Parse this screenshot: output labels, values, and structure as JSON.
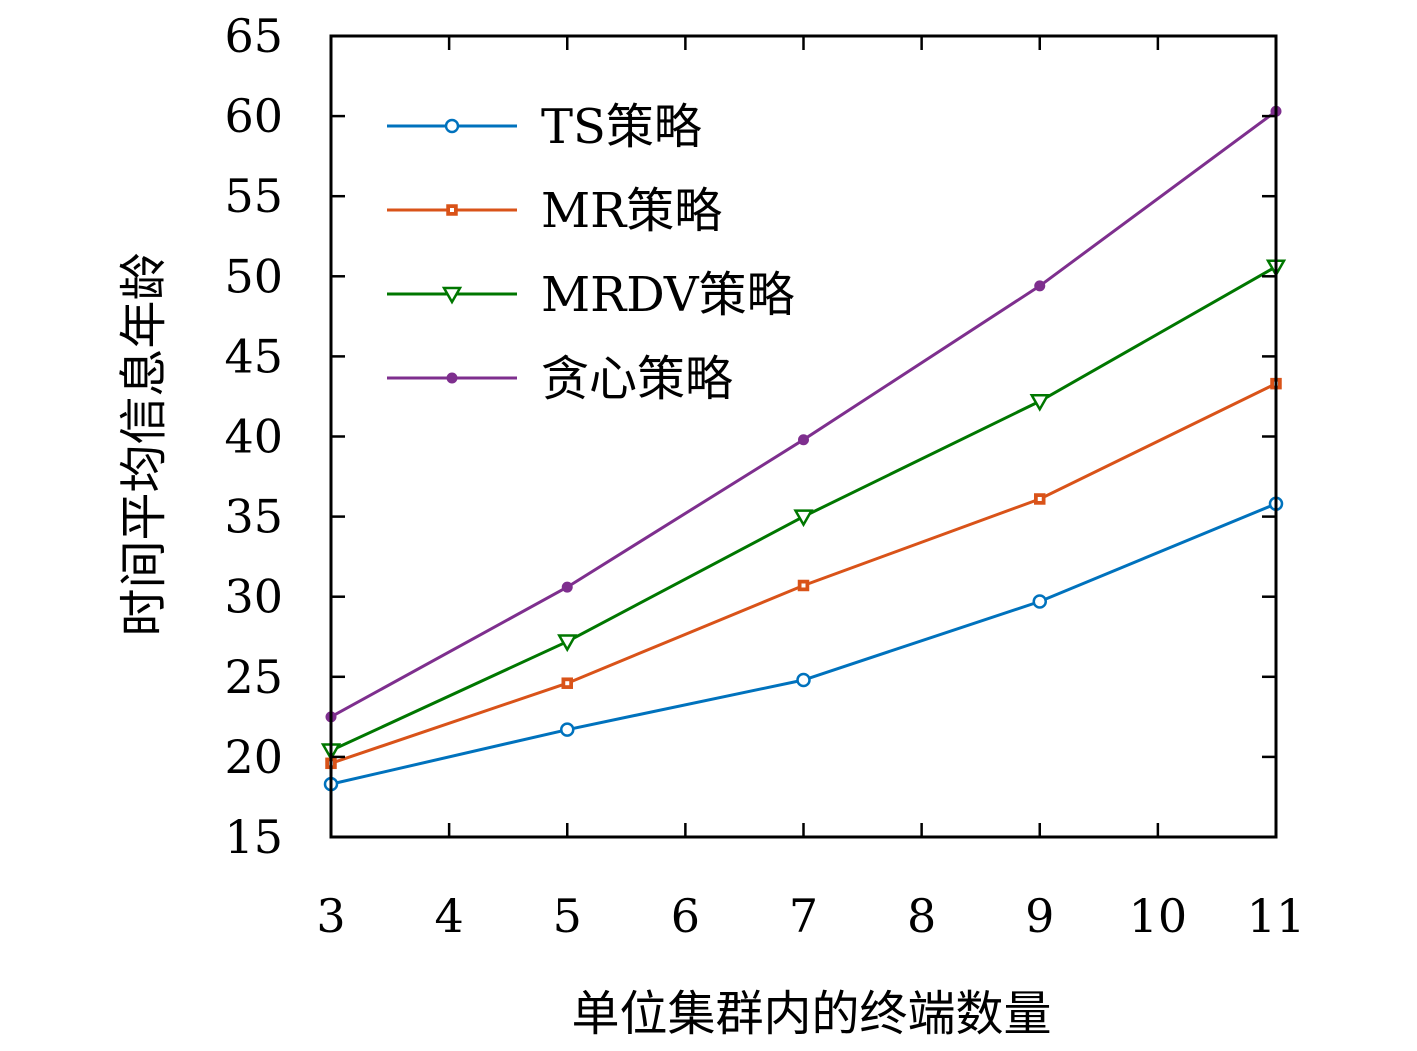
{
  "chart_data": {
    "type": "line",
    "title": "",
    "xlabel": "单位集群内的终端数量",
    "ylabel": "时间平均信息年龄",
    "xlim": [
      3,
      11
    ],
    "ylim": [
      15,
      65
    ],
    "xticks": [
      3,
      4,
      5,
      6,
      7,
      8,
      9,
      10,
      11
    ],
    "yticks": [
      15,
      20,
      25,
      30,
      35,
      40,
      45,
      50,
      55,
      60,
      65
    ],
    "grid": false,
    "legend_position": "top-left",
    "x": [
      3,
      5,
      7,
      9,
      11
    ],
    "series": [
      {
        "name": "TS策略",
        "color": "#0072BD",
        "marker": "circle-open",
        "values": [
          18.3,
          21.7,
          24.8,
          29.7,
          35.8
        ]
      },
      {
        "name": "MR策略",
        "color": "#D95319",
        "marker": "square-small",
        "values": [
          19.6,
          24.6,
          30.7,
          36.1,
          43.3
        ]
      },
      {
        "name": "MRDV策略",
        "color": "#007700",
        "marker": "triangle-down-open",
        "values": [
          20.4,
          27.2,
          35.0,
          42.2,
          50.6
        ]
      },
      {
        "name": "贪心策略",
        "color": "#7E2F8E",
        "marker": "dot",
        "values": [
          22.5,
          30.6,
          39.8,
          49.4,
          60.3
        ]
      }
    ]
  }
}
